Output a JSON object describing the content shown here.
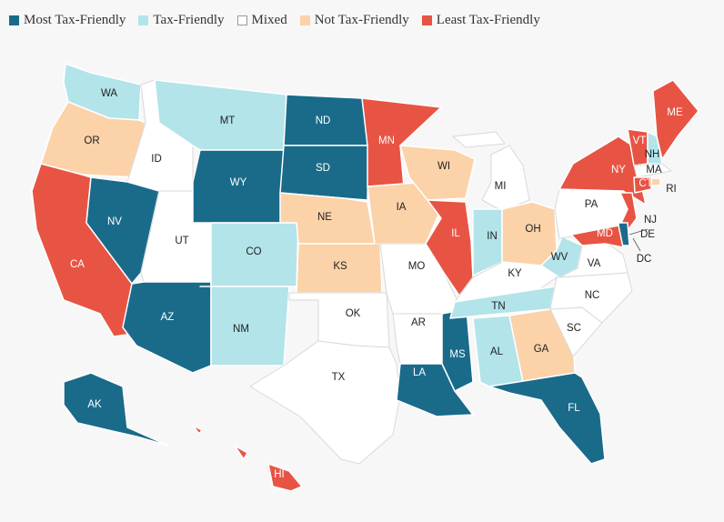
{
  "colors": {
    "most": "#1a6b8a",
    "friendly": "#b2e4ea",
    "mixed": "#ffffff",
    "not": "#fcd2a9",
    "least": "#e85444"
  },
  "legend": [
    {
      "key": "most",
      "label": "Most Tax-Friendly"
    },
    {
      "key": "friendly",
      "label": "Tax-Friendly"
    },
    {
      "key": "mixed",
      "label": "Mixed"
    },
    {
      "key": "not",
      "label": "Not Tax-Friendly"
    },
    {
      "key": "least",
      "label": "Least Tax-Friendly"
    }
  ],
  "states": {
    "WA": "friendly",
    "OR": "not",
    "CA": "least",
    "ID": "mixed",
    "NV": "most",
    "UT": "mixed",
    "AZ": "most",
    "MT": "friendly",
    "WY": "most",
    "CO": "friendly",
    "NM": "friendly",
    "ND": "most",
    "SD": "most",
    "NE": "not",
    "KS": "not",
    "OK": "mixed",
    "TX": "mixed",
    "MN": "least",
    "IA": "not",
    "MO": "mixed",
    "AR": "mixed",
    "LA": "most",
    "WI": "not",
    "IL": "least",
    "MS": "most",
    "MI": "mixed",
    "IN": "friendly",
    "KY": "mixed",
    "TN": "friendly",
    "AL": "friendly",
    "OH": "not",
    "WV": "friendly",
    "GA": "not",
    "FL": "most",
    "SC": "mixed",
    "NC": "mixed",
    "VA": "mixed",
    "PA": "mixed",
    "NY": "least",
    "ME": "least",
    "VT": "least",
    "NH": "friendly",
    "MA": "mixed",
    "RI": "not",
    "CT": "least",
    "NJ": "least",
    "DE": "most",
    "MD": "least",
    "AK": "most",
    "HI": "least"
  },
  "outside_labels": [
    "MA",
    "RI",
    "NJ",
    "DE",
    "DC"
  ],
  "dc_label": "DC"
}
